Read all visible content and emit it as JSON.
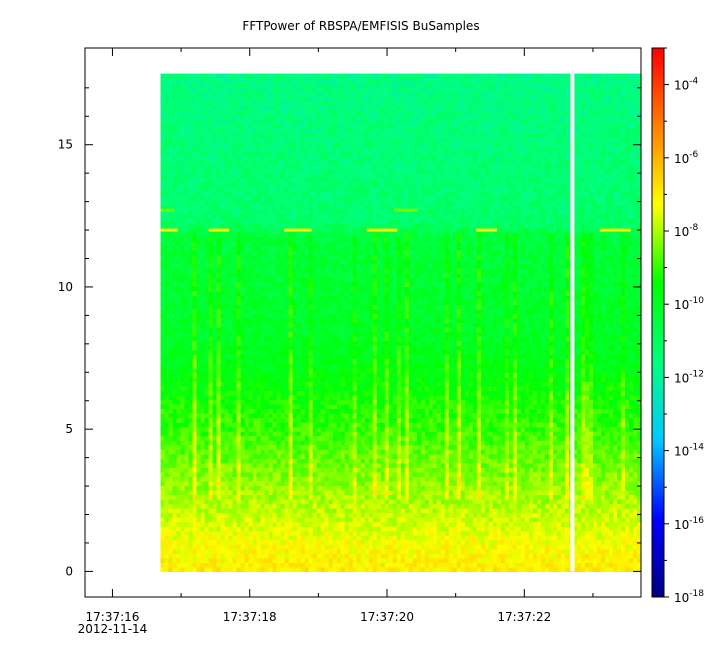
{
  "chart_data": {
    "type": "heatmap",
    "title": "FFTPower of RBSPA/EMFISIS  BuSamples",
    "xlabel": "",
    "ylabel": "",
    "x_range": [
      "17:37:15.6",
      "17:37:23.7"
    ],
    "data_x_range": [
      "17:37:16.7",
      "17:37:23.7"
    ],
    "x_ticks": [
      {
        "label": "17:37:16",
        "sublabel": "2012-11-14"
      },
      {
        "label": "17:37:18",
        "sublabel": ""
      },
      {
        "label": "17:37:20",
        "sublabel": ""
      },
      {
        "label": "17:37:22",
        "sublabel": ""
      }
    ],
    "x_minor_ticks": [
      "17:37:17",
      "17:37:19",
      "17:37:21",
      "17:37:23"
    ],
    "y_range": [
      -0.9,
      18.4
    ],
    "data_y_range": [
      0,
      17.5
    ],
    "y_ticks": [
      {
        "value": 0,
        "label": "0"
      },
      {
        "value": 5,
        "label": "5"
      },
      {
        "value": 10,
        "label": "10"
      },
      {
        "value": 15,
        "label": "15"
      }
    ],
    "data_gap_time": "17:37:22.7",
    "colorbar": {
      "scale": "log",
      "range": [
        1e-18,
        0.001
      ],
      "ticks": [
        {
          "exponent": "-4",
          "base": "10"
        },
        {
          "exponent": "-6",
          "base": "10"
        },
        {
          "exponent": "-8",
          "base": "10"
        },
        {
          "exponent": "-10",
          "base": "10"
        },
        {
          "exponent": "-12",
          "base": "10"
        },
        {
          "exponent": "-14",
          "base": "10"
        },
        {
          "exponent": "-16",
          "base": "10"
        },
        {
          "exponent": "-18",
          "base": "10"
        }
      ],
      "colors": [
        "#00007f",
        "#0000ff",
        "#00c8ff",
        "#00ff80",
        "#00ff00",
        "#ffff00",
        "#ff8000",
        "#ff0000"
      ]
    },
    "spectrum_profile": [
      {
        "freq": 0.0,
        "log10_power": -7.0
      },
      {
        "freq": 1.0,
        "log10_power": -7.3
      },
      {
        "freq": 2.5,
        "log10_power": -8.0
      },
      {
        "freq": 5.0,
        "log10_power": -9.0
      },
      {
        "freq": 8.0,
        "log10_power": -10.0
      },
      {
        "freq": 11.8,
        "log10_power": -10.4
      },
      {
        "freq": 12.3,
        "log10_power": -11.2
      },
      {
        "freq": 17.5,
        "log10_power": -11.6
      }
    ],
    "lines_at_freq": [
      {
        "freq": 12.0,
        "log10_power": -7.0
      },
      {
        "freq": 12.7,
        "log10_power": -8.5
      }
    ]
  }
}
